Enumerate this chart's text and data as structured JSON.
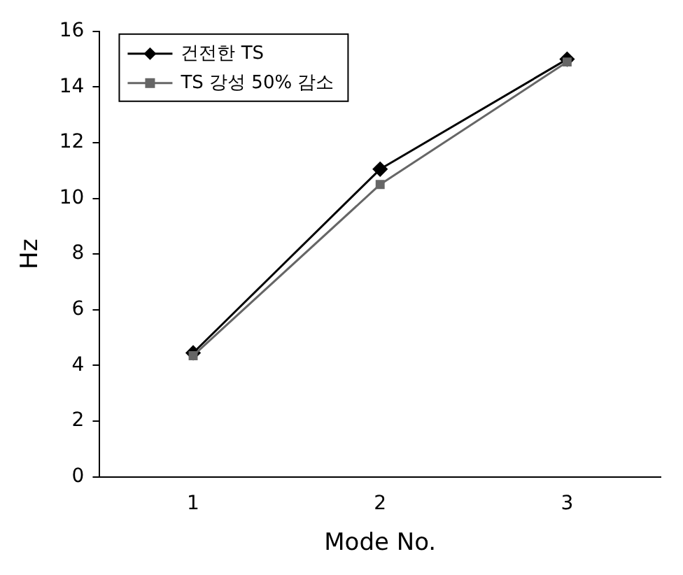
{
  "chart_data": {
    "type": "line",
    "xlabel": "Mode No.",
    "ylabel": "Hz",
    "categories": [
      "1",
      "2",
      "3"
    ],
    "series": [
      {
        "name": "건전한 TS",
        "color": "#000000",
        "marker": "diamond",
        "values": [
          4.45,
          11.05,
          15.0
        ]
      },
      {
        "name": "TS 강성 50% 감소",
        "color": "#666666",
        "marker": "square",
        "values": [
          4.35,
          10.5,
          14.9
        ]
      }
    ],
    "ylim": [
      0,
      16
    ],
    "yticks": [
      0,
      2,
      4,
      6,
      8,
      10,
      12,
      14,
      16
    ],
    "grid": false,
    "legend": "top left"
  }
}
